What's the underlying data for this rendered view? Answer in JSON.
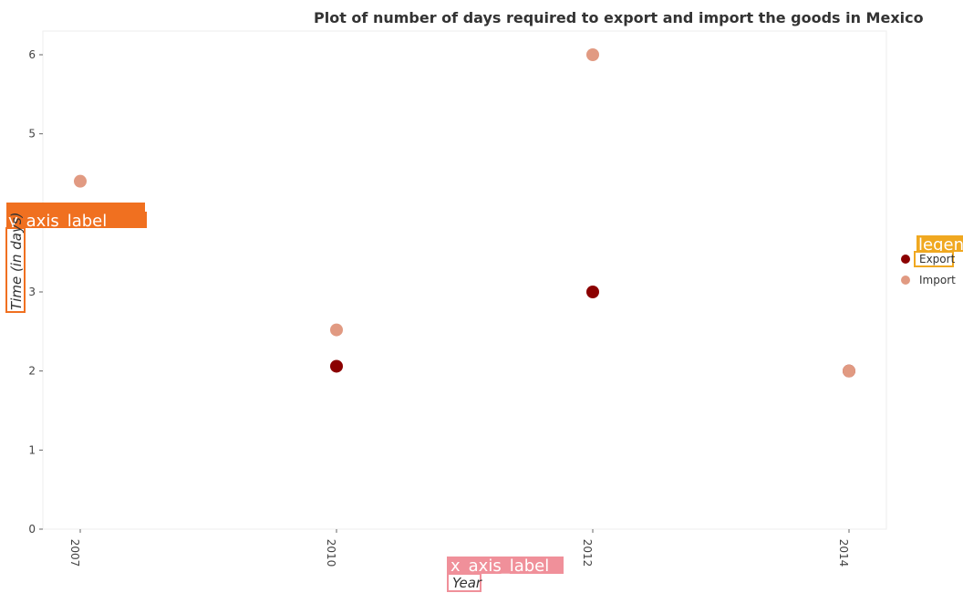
{
  "chart_data": {
    "type": "scatter",
    "title": "Plot of number of days required to export and import the goods in Mexico",
    "xlabel": "Year",
    "ylabel": "Time (in days)",
    "categories": [
      "2007",
      "2010",
      "2012",
      "2014"
    ],
    "ylim": [
      0,
      6.3
    ],
    "yticks": [
      "0",
      "1",
      "2",
      "3",
      "4",
      "5",
      "6"
    ],
    "series": [
      {
        "name": "Export",
        "color": "#8b0000",
        "values": [
          null,
          2.06,
          3.0,
          2.0
        ]
      },
      {
        "name": "Import",
        "color": "#e19a82",
        "values": [
          4.4,
          2.52,
          6.0,
          2.0
        ]
      }
    ],
    "grid": false,
    "legend_position": "right"
  },
  "overlays": {
    "y_axis_label_tag": "y_axis_label",
    "x_axis_label_tag": "x_axis_label",
    "legend_tag": "legend"
  }
}
